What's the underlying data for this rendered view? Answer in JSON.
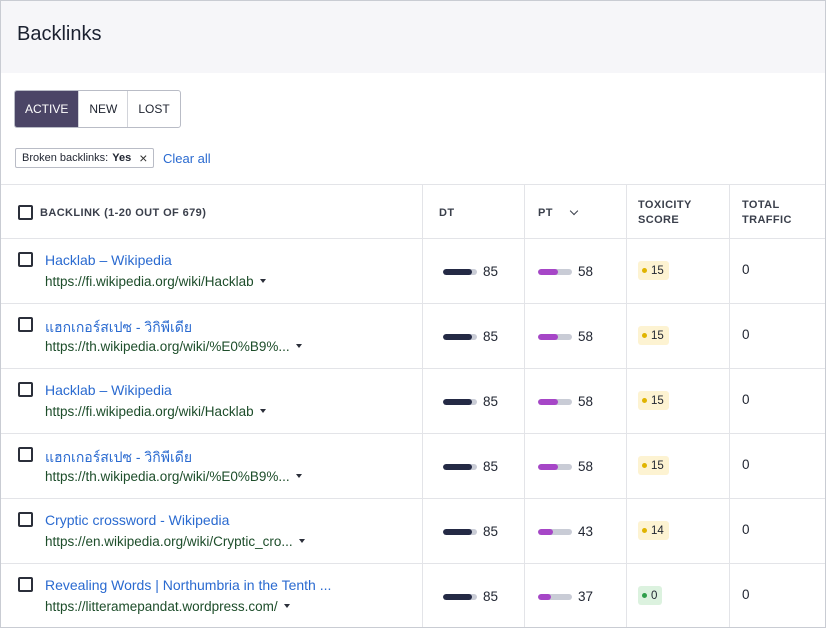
{
  "header": {
    "title": "Backlinks"
  },
  "tabs": [
    {
      "label": "ACTIVE",
      "active": true
    },
    {
      "label": "NEW",
      "active": false
    },
    {
      "label": "LOST",
      "active": false
    }
  ],
  "filter": {
    "label": "Broken backlinks:",
    "value": "Yes",
    "remove_icon": "close-icon"
  },
  "clear_all": "Clear all",
  "table": {
    "columns": {
      "backlink": "BACKLINK (1-20 OUT OF 679)",
      "dt": "DT",
      "pt": "PT",
      "toxicity_line1": "TOXICITY",
      "toxicity_line2": "SCORE",
      "traffic_line1": "TOTAL",
      "traffic_line2": "TRAFFIC"
    },
    "rows": [
      {
        "title": "Hacklab – Wikipedia",
        "url": "https://fi.wikipedia.org/wiki/Hacklab",
        "dt": 85,
        "pt": 58,
        "toxicity": 15,
        "traffic": "0"
      },
      {
        "title": "แฮกเกอร์สเปซ - วิกิพีเดีย",
        "url": "https://th.wikipedia.org/wiki/%E0%B9%...",
        "dt": 85,
        "pt": 58,
        "toxicity": 15,
        "traffic": "0"
      },
      {
        "title": "Hacklab – Wikipedia",
        "url": "https://fi.wikipedia.org/wiki/Hacklab",
        "dt": 85,
        "pt": 58,
        "toxicity": 15,
        "traffic": "0"
      },
      {
        "title": "แฮกเกอร์สเปซ - วิกิพีเดีย",
        "url": "https://th.wikipedia.org/wiki/%E0%B9%...",
        "dt": 85,
        "pt": 58,
        "toxicity": 15,
        "traffic": "0"
      },
      {
        "title": "Cryptic crossword - Wikipedia",
        "url": "https://en.wikipedia.org/wiki/Cryptic_cro...",
        "dt": 85,
        "pt": 43,
        "toxicity": 14,
        "traffic": "0"
      },
      {
        "title": "Revealing Words | Northumbria in the Tenth ...",
        "url": "https://litteramepandat.wordpress.com/",
        "dt": 85,
        "pt": 37,
        "toxicity": 0,
        "traffic": "0"
      }
    ]
  },
  "colors": {
    "tab_active_bg": "#4b4566",
    "link": "#2a6ad0",
    "url": "#1d4d2a",
    "dt_bar": "#242a45",
    "pt_bar": "#a646c7",
    "tox_warn_bg": "#fdf3d2",
    "tox_warn_dot": "#e0b400",
    "tox_ok_bg": "#dcf2df",
    "tox_ok_dot": "#2e9e4a"
  }
}
